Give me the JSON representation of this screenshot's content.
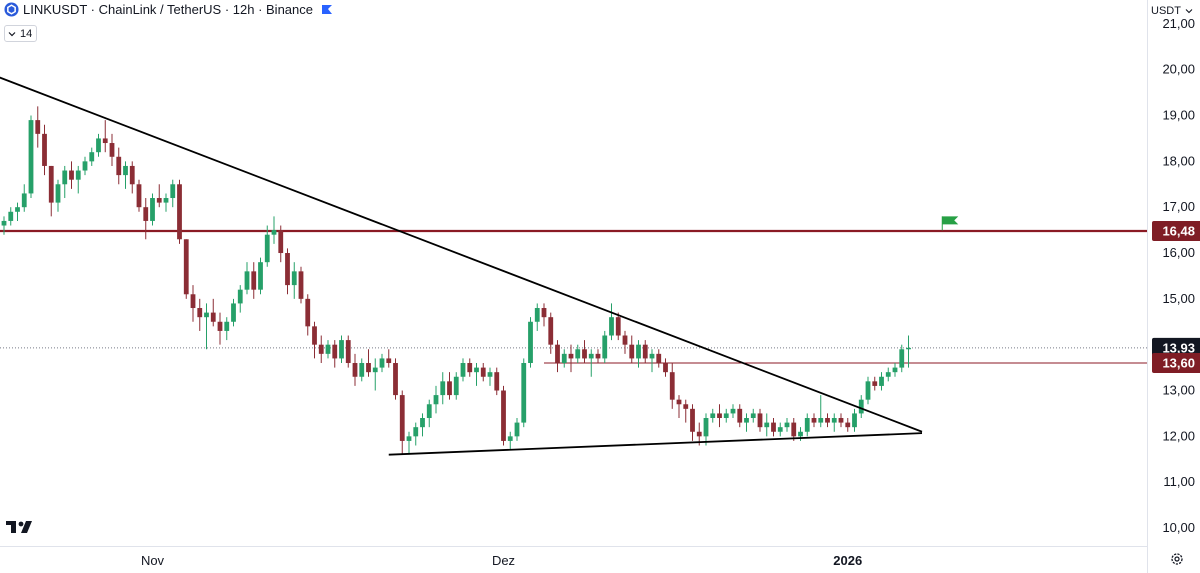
{
  "header": {
    "symbol_line": "LINKUSDT · ChainLink / TetherUS · 12h · Binance",
    "interval_value": "14",
    "currency_label": "USDT"
  },
  "icons": {
    "symbol": "chainlink-logo-icon",
    "flag": "flag-icon",
    "interval_toggle": "chevron-down-icon",
    "currency_dropdown": "chevron-down-icon",
    "settings": "gear-icon",
    "brand": "tradingview-logo-icon"
  },
  "colors": {
    "up": "#26a069",
    "down": "#8b2d35",
    "resistance": "#8b1a24",
    "trend": "#000000",
    "axis_text": "#131722",
    "marker": "#27a045"
  },
  "chart_data": {
    "type": "candlestick",
    "title": "LINKUSDT · ChainLink / TetherUS · 12h · Binance",
    "y_axis": {
      "side": "right",
      "range": [
        9.8,
        21.4
      ],
      "ticks": [
        10,
        11,
        12,
        13,
        14,
        15,
        16,
        17,
        18,
        19,
        20,
        21
      ],
      "tick_labels": [
        "10,00",
        "11,00",
        "12,00",
        "13,00",
        "14,00",
        "15,00",
        "16,00",
        "17,00",
        "18,00",
        "19,00",
        "20,00",
        "21,00"
      ]
    },
    "x_axis": {
      "bar_count": 135,
      "labels": [
        {
          "bar": 22,
          "text": "Nov"
        },
        {
          "bar": 74,
          "text": "Dez"
        },
        {
          "bar": 125,
          "text": "2026"
        }
      ]
    },
    "price_labels": [
      {
        "value": 16.48,
        "text": "16,48",
        "bg": "#7f1d25"
      },
      {
        "value": 13.93,
        "text": "13,93",
        "bg": "#131722"
      },
      {
        "value": 13.6,
        "text": "13,60",
        "bg": "#7f1d25"
      }
    ],
    "horizontal_lines": [
      {
        "value": 16.48,
        "style": "solid-thick",
        "color": "#8b1a24"
      },
      {
        "value": 13.93,
        "style": "dotted",
        "color": "#787b86"
      },
      {
        "from_bar": 80,
        "value": 13.6,
        "style": "solid",
        "color": "#8b1a24"
      }
    ],
    "trend_lines": [
      {
        "from": {
          "bar": -1,
          "value": 19.85
        },
        "to": {
          "bar": 136,
          "value": 12.1
        }
      },
      {
        "from": {
          "bar": 57,
          "value": 11.6
        },
        "to": {
          "bar": 136,
          "value": 12.07
        }
      }
    ],
    "marker": {
      "bar": 139,
      "value": 16.8,
      "kind": "flag"
    },
    "candles": [
      [
        16.6,
        16.8,
        16.4,
        16.7
      ],
      [
        16.7,
        17.0,
        16.6,
        16.9
      ],
      [
        16.9,
        17.1,
        16.7,
        17.0
      ],
      [
        17.0,
        17.5,
        16.9,
        17.3
      ],
      [
        17.3,
        19.0,
        17.2,
        18.9
      ],
      [
        18.9,
        19.2,
        18.3,
        18.6
      ],
      [
        18.6,
        18.8,
        17.7,
        17.9
      ],
      [
        17.9,
        17.9,
        16.8,
        17.1
      ],
      [
        17.1,
        17.6,
        16.9,
        17.5
      ],
      [
        17.5,
        17.9,
        17.2,
        17.8
      ],
      [
        17.8,
        18.0,
        17.4,
        17.6
      ],
      [
        17.6,
        17.9,
        17.3,
        17.8
      ],
      [
        17.8,
        18.1,
        17.7,
        18.0
      ],
      [
        18.0,
        18.3,
        17.9,
        18.2
      ],
      [
        18.2,
        18.6,
        18.1,
        18.5
      ],
      [
        18.5,
        18.9,
        18.2,
        18.4
      ],
      [
        18.4,
        18.6,
        17.9,
        18.1
      ],
      [
        18.1,
        18.3,
        17.5,
        17.7
      ],
      [
        17.7,
        18.0,
        17.4,
        17.9
      ],
      [
        17.9,
        18.0,
        17.3,
        17.5
      ],
      [
        17.5,
        17.6,
        16.9,
        17.0
      ],
      [
        17.0,
        17.2,
        16.3,
        16.7
      ],
      [
        16.7,
        17.3,
        16.6,
        17.2
      ],
      [
        17.2,
        17.5,
        17.0,
        17.1
      ],
      [
        17.1,
        17.3,
        16.9,
        17.2
      ],
      [
        17.2,
        17.6,
        17.0,
        17.5
      ],
      [
        17.5,
        17.6,
        16.2,
        16.3
      ],
      [
        16.3,
        16.3,
        15.0,
        15.1
      ],
      [
        15.1,
        15.3,
        14.5,
        14.8
      ],
      [
        14.8,
        15.0,
        14.3,
        14.6
      ],
      [
        14.6,
        14.9,
        13.9,
        14.7
      ],
      [
        14.7,
        15.0,
        14.4,
        14.5
      ],
      [
        14.5,
        14.7,
        14.0,
        14.3
      ],
      [
        14.3,
        14.6,
        14.1,
        14.5
      ],
      [
        14.5,
        15.0,
        14.4,
        14.9
      ],
      [
        14.9,
        15.3,
        14.7,
        15.2
      ],
      [
        15.2,
        15.8,
        15.1,
        15.6
      ],
      [
        15.6,
        15.8,
        15.0,
        15.2
      ],
      [
        15.2,
        15.9,
        15.1,
        15.8
      ],
      [
        15.8,
        16.6,
        15.7,
        16.4
      ],
      [
        16.4,
        16.8,
        16.2,
        16.5
      ],
      [
        16.5,
        16.6,
        15.8,
        16.0
      ],
      [
        16.0,
        16.1,
        15.1,
        15.3
      ],
      [
        15.3,
        15.8,
        15.0,
        15.6
      ],
      [
        15.6,
        15.7,
        14.9,
        15.0
      ],
      [
        15.0,
        15.1,
        14.2,
        14.4
      ],
      [
        14.4,
        14.5,
        13.7,
        14.0
      ],
      [
        14.0,
        14.2,
        13.6,
        13.8
      ],
      [
        13.8,
        14.1,
        13.7,
        14.0
      ],
      [
        14.0,
        14.1,
        13.5,
        13.7
      ],
      [
        13.7,
        14.2,
        13.6,
        14.1
      ],
      [
        14.1,
        14.2,
        13.5,
        13.6
      ],
      [
        13.6,
        13.8,
        13.1,
        13.3
      ],
      [
        13.3,
        13.7,
        13.2,
        13.6
      ],
      [
        13.6,
        13.9,
        13.3,
        13.4
      ],
      [
        13.4,
        13.7,
        13.0,
        13.5
      ],
      [
        13.5,
        13.8,
        13.4,
        13.7
      ],
      [
        13.7,
        13.9,
        13.5,
        13.6
      ],
      [
        13.6,
        13.7,
        12.8,
        12.9
      ],
      [
        12.9,
        13.0,
        11.6,
        11.9
      ],
      [
        11.9,
        12.1,
        11.6,
        12.0
      ],
      [
        12.0,
        12.3,
        11.8,
        12.2
      ],
      [
        12.2,
        12.5,
        12.0,
        12.4
      ],
      [
        12.4,
        12.8,
        12.2,
        12.7
      ],
      [
        12.7,
        13.1,
        12.5,
        12.9
      ],
      [
        12.9,
        13.4,
        12.7,
        13.2
      ],
      [
        13.2,
        13.4,
        12.8,
        12.9
      ],
      [
        12.9,
        13.4,
        12.8,
        13.3
      ],
      [
        13.3,
        13.7,
        13.2,
        13.6
      ],
      [
        13.6,
        13.7,
        13.3,
        13.4
      ],
      [
        13.4,
        13.6,
        13.1,
        13.5
      ],
      [
        13.5,
        13.6,
        13.2,
        13.3
      ],
      [
        13.3,
        13.5,
        13.1,
        13.4
      ],
      [
        13.4,
        13.5,
        12.9,
        13.0
      ],
      [
        13.0,
        13.1,
        11.8,
        11.9
      ],
      [
        11.9,
        12.1,
        11.7,
        12.0
      ],
      [
        12.0,
        12.4,
        11.9,
        12.3
      ],
      [
        12.3,
        13.7,
        12.2,
        13.6
      ],
      [
        13.6,
        14.6,
        13.5,
        14.5
      ],
      [
        14.5,
        14.9,
        14.3,
        14.8
      ],
      [
        14.8,
        14.9,
        14.4,
        14.6
      ],
      [
        14.6,
        14.7,
        13.8,
        14.0
      ],
      [
        14.0,
        14.1,
        13.4,
        13.6
      ],
      [
        13.6,
        13.9,
        13.5,
        13.8
      ],
      [
        13.8,
        14.0,
        13.4,
        13.7
      ],
      [
        13.7,
        14.0,
        13.6,
        13.9
      ],
      [
        13.9,
        14.1,
        13.6,
        13.7
      ],
      [
        13.7,
        13.9,
        13.3,
        13.8
      ],
      [
        13.8,
        13.9,
        13.6,
        13.7
      ],
      [
        13.7,
        14.3,
        13.6,
        14.2
      ],
      [
        14.2,
        14.9,
        14.1,
        14.6
      ],
      [
        14.6,
        14.7,
        14.1,
        14.2
      ],
      [
        14.2,
        14.3,
        13.8,
        14.0
      ],
      [
        14.0,
        14.2,
        13.6,
        13.7
      ],
      [
        13.7,
        14.1,
        13.5,
        14.0
      ],
      [
        14.0,
        14.1,
        13.6,
        13.7
      ],
      [
        13.7,
        13.9,
        13.4,
        13.8
      ],
      [
        13.8,
        13.9,
        13.5,
        13.6
      ],
      [
        13.6,
        13.7,
        13.3,
        13.4
      ],
      [
        13.4,
        13.6,
        12.6,
        12.8
      ],
      [
        12.8,
        12.9,
        12.4,
        12.7
      ],
      [
        12.7,
        12.8,
        12.3,
        12.6
      ],
      [
        12.6,
        12.7,
        11.9,
        12.1
      ],
      [
        12.1,
        12.3,
        11.8,
        12.0
      ],
      [
        12.0,
        12.5,
        11.8,
        12.4
      ],
      [
        12.4,
        12.6,
        12.3,
        12.5
      ],
      [
        12.5,
        12.7,
        12.2,
        12.4
      ],
      [
        12.4,
        12.6,
        12.3,
        12.5
      ],
      [
        12.5,
        12.7,
        12.4,
        12.6
      ],
      [
        12.6,
        12.7,
        12.2,
        12.3
      ],
      [
        12.3,
        12.5,
        12.1,
        12.4
      ],
      [
        12.4,
        12.6,
        12.3,
        12.5
      ],
      [
        12.5,
        12.6,
        12.1,
        12.2
      ],
      [
        12.2,
        12.5,
        12.0,
        12.3
      ],
      [
        12.3,
        12.4,
        12.0,
        12.1
      ],
      [
        12.1,
        12.3,
        12.0,
        12.2
      ],
      [
        12.2,
        12.4,
        12.1,
        12.3
      ],
      [
        12.3,
        12.4,
        11.9,
        12.0
      ],
      [
        12.0,
        12.2,
        11.9,
        12.1
      ],
      [
        12.1,
        12.5,
        12.0,
        12.4
      ],
      [
        12.4,
        12.5,
        12.2,
        12.3
      ],
      [
        12.3,
        12.9,
        12.2,
        12.4
      ],
      [
        12.4,
        12.5,
        12.2,
        12.3
      ],
      [
        12.3,
        12.5,
        12.1,
        12.4
      ],
      [
        12.4,
        12.5,
        12.2,
        12.3
      ],
      [
        12.3,
        12.4,
        12.1,
        12.2
      ],
      [
        12.2,
        12.6,
        12.1,
        12.5
      ],
      [
        12.5,
        12.9,
        12.4,
        12.8
      ],
      [
        12.8,
        13.3,
        12.7,
        13.2
      ],
      [
        13.2,
        13.3,
        13.0,
        13.1
      ],
      [
        13.1,
        13.4,
        13.0,
        13.3
      ],
      [
        13.3,
        13.5,
        13.2,
        13.4
      ],
      [
        13.4,
        13.6,
        13.3,
        13.5
      ],
      [
        13.5,
        14.0,
        13.4,
        13.9
      ],
      [
        13.9,
        14.2,
        13.5,
        13.93
      ]
    ]
  }
}
